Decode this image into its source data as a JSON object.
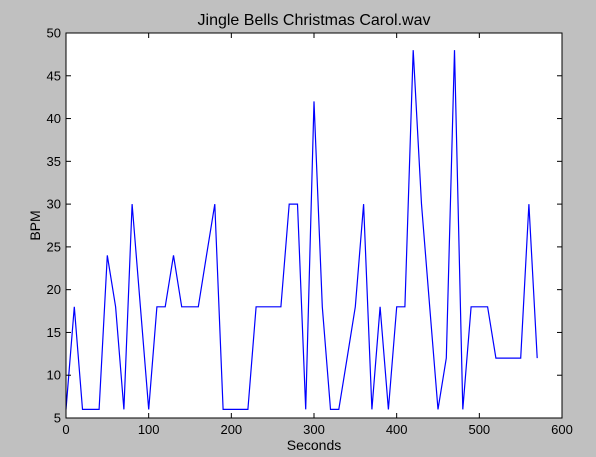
{
  "chart_data": {
    "type": "line",
    "title": "Jingle Bells Christmas Carol.wav",
    "xlabel": "Seconds",
    "ylabel": "BPM",
    "xlim": [
      0,
      600
    ],
    "ylim": [
      5,
      50
    ],
    "xticks": [
      0,
      100,
      200,
      300,
      400,
      500,
      600
    ],
    "yticks": [
      5,
      10,
      15,
      20,
      25,
      30,
      35,
      40,
      45,
      50
    ],
    "grid": false,
    "colors": {
      "line": "#0000ff",
      "background": "#c0c0c0",
      "plot_area": "#ffffff"
    },
    "series": [
      {
        "x": [
          0,
          10,
          20,
          30,
          40,
          50,
          60,
          70,
          80,
          90,
          100,
          110,
          120,
          130,
          140,
          150,
          160,
          170,
          180,
          190,
          200,
          210,
          220,
          230,
          240,
          250,
          260,
          270,
          280,
          290,
          300,
          310,
          320,
          330,
          340,
          350,
          360,
          370,
          380,
          390,
          400,
          410,
          420,
          430,
          440,
          450,
          460,
          470,
          480,
          490,
          500,
          510,
          520,
          530,
          540,
          550,
          560,
          570
        ],
        "y": [
          6,
          18,
          6,
          6,
          6,
          24,
          18,
          6,
          30,
          18,
          6,
          18,
          18,
          24,
          18,
          18,
          18,
          24,
          30,
          6,
          6,
          6,
          6,
          18,
          18,
          18,
          18,
          30,
          30,
          6,
          42,
          18,
          6,
          6,
          12,
          18,
          30,
          6,
          18,
          6,
          18,
          18,
          48,
          30,
          18,
          6,
          12,
          48,
          6,
          18,
          18,
          18,
          12,
          12,
          12,
          12,
          30,
          12
        ]
      }
    ]
  }
}
